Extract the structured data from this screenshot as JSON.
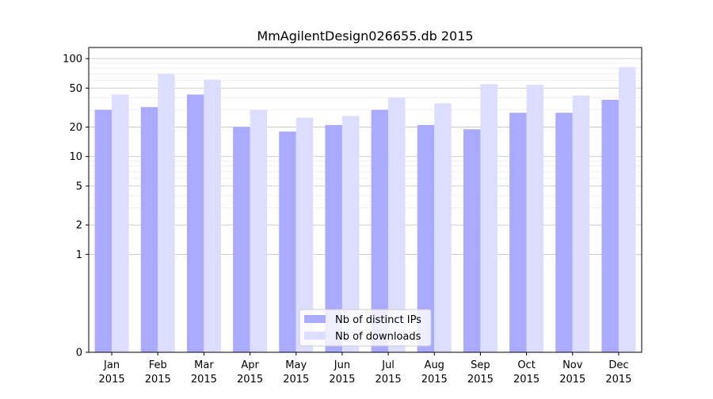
{
  "chart_data": {
    "type": "bar",
    "title": "MmAgilentDesign026655.db 2015",
    "xlabel": "",
    "ylabel": "",
    "y_scale": "symlog",
    "ylim": [
      0,
      130
    ],
    "y_ticks": [
      0,
      1,
      2,
      5,
      10,
      20,
      50,
      100
    ],
    "grid": true,
    "legend_position": "lower center",
    "categories": [
      [
        "Jan",
        "2015"
      ],
      [
        "Feb",
        "2015"
      ],
      [
        "Mar",
        "2015"
      ],
      [
        "Apr",
        "2015"
      ],
      [
        "May",
        "2015"
      ],
      [
        "Jun",
        "2015"
      ],
      [
        "Jul",
        "2015"
      ],
      [
        "Aug",
        "2015"
      ],
      [
        "Sep",
        "2015"
      ],
      [
        "Oct",
        "2015"
      ],
      [
        "Nov",
        "2015"
      ],
      [
        "Dec",
        "2015"
      ]
    ],
    "series": [
      {
        "name": "Nb of distinct IPs",
        "color": "#aaaaff",
        "values": [
          30,
          32,
          43,
          20,
          18,
          21,
          30,
          21,
          19,
          28,
          28,
          38
        ]
      },
      {
        "name": "Nb of downloads",
        "color": "#ddddff",
        "values": [
          43,
          70,
          61,
          30,
          25,
          26,
          40,
          35,
          55,
          54,
          42,
          82
        ]
      }
    ]
  }
}
